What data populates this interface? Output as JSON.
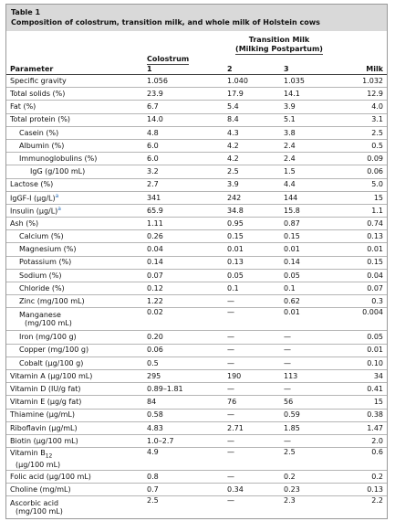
{
  "header": {
    "label": "Table 1",
    "title": "Composition of colostrum, transition milk, and whole milk of Holstein cows"
  },
  "columns": {
    "parameter": "Parameter",
    "colostrum": "Colostrum",
    "colostrum_number": "1",
    "transition": [
      "Transition Milk",
      "(Milking Postpartum)"
    ],
    "transition_numbers": [
      "2",
      "3"
    ],
    "milk": "Milk"
  },
  "table": {
    "rows": [
      {
        "param": [
          "Specific gravity"
        ],
        "values": [
          "1.056",
          "1.040",
          "1.035",
          "1.032"
        ]
      },
      {
        "param": [
          "Total solids (%)"
        ],
        "values": [
          "23.9",
          "17.9",
          "14.1",
          "12.9"
        ]
      },
      {
        "param": [
          "Fat (%)"
        ],
        "values": [
          "6.7",
          "5.4",
          "3.9",
          "4.0"
        ]
      },
      {
        "param": [
          "Total protein (%)"
        ],
        "values": [
          "14.0",
          "8.4",
          "5.1",
          "3.1"
        ]
      },
      {
        "param": [
          "Casein (%)"
        ],
        "values": [
          "4.8",
          "4.3",
          "3.8",
          "2.5"
        ]
      },
      {
        "param": [
          "Albumin (%)"
        ],
        "values": [
          "6.0",
          "4.2",
          "2.4",
          "0.5"
        ]
      },
      {
        "param": [
          "Immunoglobulins (%)"
        ],
        "values": [
          "6.0",
          "4.2",
          "2.4",
          "0.09"
        ]
      },
      {
        "param": [
          "IgG (g/100 mL)"
        ],
        "values": [
          "3.2",
          "2.5",
          "1.5",
          "0.06"
        ]
      },
      {
        "param": [
          "Lactose (%)"
        ],
        "values": [
          "2.7",
          "3.9",
          "4.4",
          "5.0"
        ]
      },
      {
        "param": [
          "IgGF-I (μg/L)"
        ],
        "sup": "a",
        "values": [
          "341",
          "242",
          "144",
          "15"
        ]
      },
      {
        "param": [
          "Insulin (μg/L)"
        ],
        "sup": "a",
        "values": [
          "65.9",
          "34.8",
          "15.8",
          "1.1"
        ]
      },
      {
        "param": [
          "Ash (%)"
        ],
        "values": [
          "1.11",
          "0.95",
          "0.87",
          "0.74"
        ]
      },
      {
        "param": [
          "Calcium (%)"
        ],
        "values": [
          "0.26",
          "0.15",
          "0.15",
          "0.13"
        ]
      },
      {
        "param": [
          "Magnesium (%)"
        ],
        "values": [
          "0.04",
          "0.01",
          "0.01",
          "0.01"
        ]
      },
      {
        "param": [
          "Potassium (%)"
        ],
        "values": [
          "0.14",
          "0.13",
          "0.14",
          "0.15"
        ]
      },
      {
        "param": [
          "Sodium (%)"
        ],
        "values": [
          "0.07",
          "0.05",
          "0.05",
          "0.04"
        ]
      },
      {
        "param": [
          "Chloride (%)"
        ],
        "values": [
          "0.12",
          "0.1",
          "0.1",
          "0.07"
        ]
      },
      {
        "param": [
          "Zinc (mg/100 mL)"
        ],
        "values": [
          "1.22",
          "—",
          "0.62",
          "0.3"
        ]
      },
      {
        "param": [
          "Manganese",
          "(mg/100 mL)"
        ],
        "values": [
          "0.02",
          "—",
          "0.01",
          "0.004"
        ]
      },
      {
        "param": [
          "Iron (mg/100 g)"
        ],
        "values": [
          "0.20",
          "—",
          "—",
          "0.05"
        ]
      },
      {
        "param": [
          "Copper (mg/100 g)"
        ],
        "values": [
          "0.06",
          "—",
          "—",
          "0.01"
        ]
      },
      {
        "param": [
          "Cobalt (μg/100 g)"
        ],
        "values": [
          "0.5",
          "—",
          "—",
          "0.10"
        ]
      },
      {
        "param": [
          "Vitamin A (μg/100 mL)"
        ],
        "values": [
          "295",
          "190",
          "113",
          "34"
        ]
      },
      {
        "param": [
          "Vitamin D (IU/g fat)"
        ],
        "values": [
          "0.89–1.81",
          "—",
          "—",
          "0.41"
        ]
      },
      {
        "param": [
          "Vitamin E (μg/g fat)"
        ],
        "values": [
          "84",
          "76",
          "56",
          "15"
        ]
      },
      {
        "param": [
          "Thiamine (μg/mL)"
        ],
        "values": [
          "0.58",
          "—",
          "0.59",
          "0.38"
        ]
      },
      {
        "param": [
          "Riboflavin (μg/mL)"
        ],
        "values": [
          "4.83",
          "2.71",
          "1.85",
          "1.47"
        ]
      },
      {
        "param": [
          "Biotin (μg/100 mL)"
        ],
        "values": [
          "1.0–2.7",
          "—",
          "—",
          "2.0"
        ]
      },
      {
        "param": [
          "Vitamin B",
          "(μg/100 mL)"
        ],
        "sub": "12",
        "values": [
          "4.9",
          "—",
          "2.5",
          "0.6"
        ]
      },
      {
        "param": [
          "Folic acid (μg/100 mL)"
        ],
        "values": [
          "0.8",
          "—",
          "0.2",
          "0.2"
        ]
      },
      {
        "param": [
          "Choline (mg/mL)"
        ],
        "values": [
          "0.7",
          "0.34",
          "0.23",
          "0.13"
        ]
      },
      {
        "param": [
          "Ascorbic acid",
          "(mg/100 mL)"
        ],
        "values": [
          "2.5",
          "—",
          "2.3",
          "2.2"
        ]
      }
    ]
  }
}
